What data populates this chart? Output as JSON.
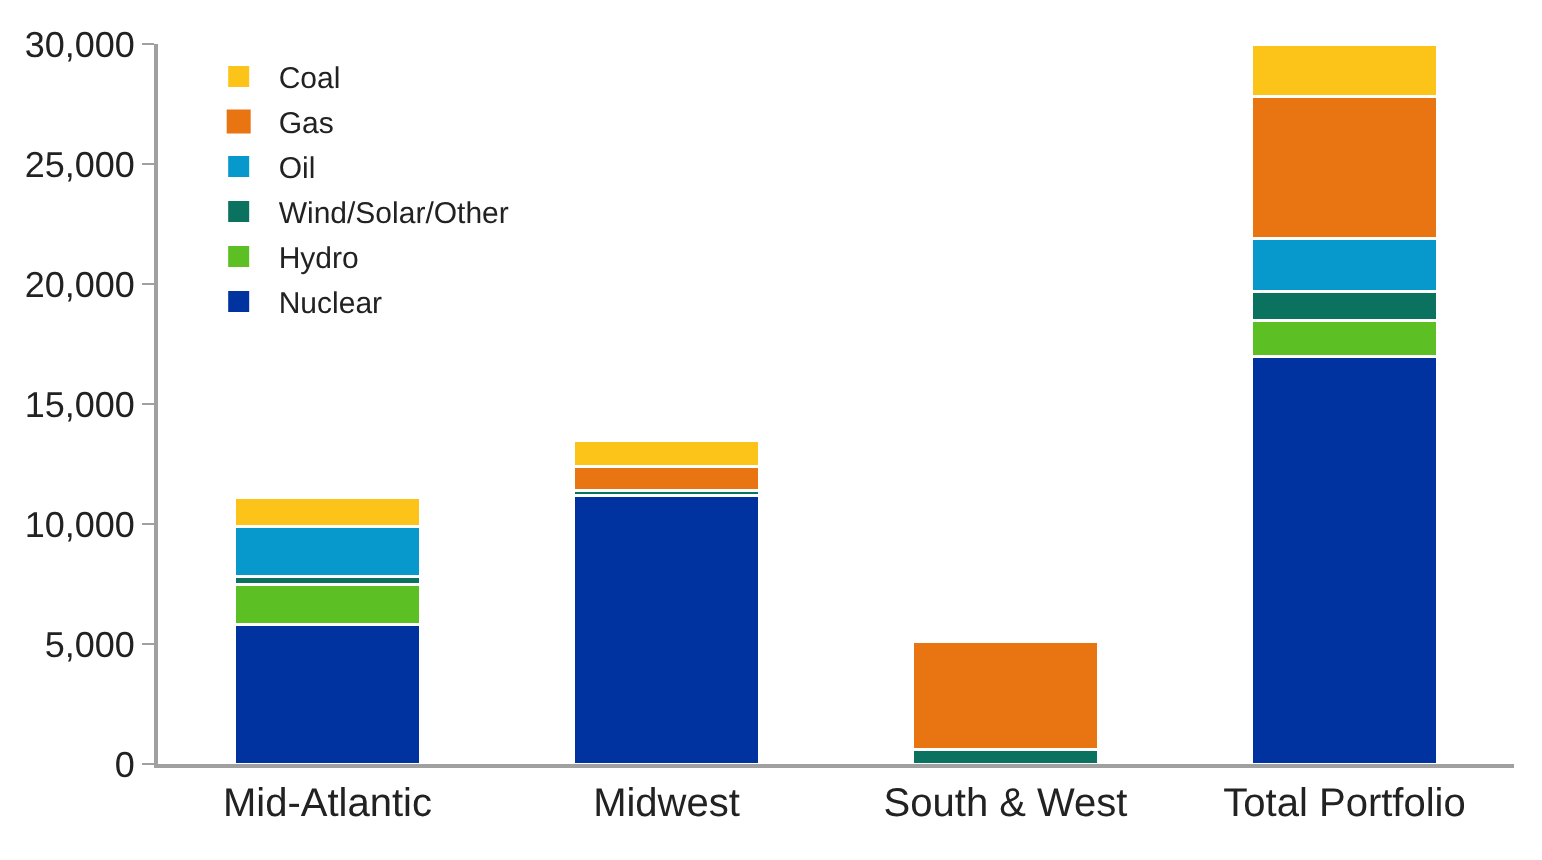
{
  "chart_data": {
    "type": "bar",
    "stacked": true,
    "categories": [
      "Mid-Atlantic",
      "Midwest",
      "South & West",
      "Total Portfolio"
    ],
    "series": [
      {
        "name": "Nuclear",
        "color": "#0033a0",
        "values": [
          5800,
          11200,
          0,
          17000
        ]
      },
      {
        "name": "Hydro",
        "color": "#5cbf24",
        "values": [
          1700,
          0,
          0,
          1500
        ]
      },
      {
        "name": "Wind/Solar/Other",
        "color": "#0b7260",
        "values": [
          300,
          200,
          600,
          1200
        ]
      },
      {
        "name": "Oil",
        "color": "#0899cc",
        "values": [
          2100,
          0,
          0,
          2200
        ]
      },
      {
        "name": "Gas",
        "color": "#e87412",
        "values": [
          0,
          1000,
          4500,
          5900
        ]
      },
      {
        "name": "Coal",
        "color": "#fcc419",
        "values": [
          1200,
          1100,
          0,
          2200
        ]
      }
    ],
    "ylim": [
      0,
      30000
    ],
    "yticks": [
      {
        "value": 0,
        "label": "0"
      },
      {
        "value": 5000,
        "label": "5,000"
      },
      {
        "value": 10000,
        "label": "10,000"
      },
      {
        "value": 15000,
        "label": "15,000"
      },
      {
        "value": 20000,
        "label": "20,000"
      },
      {
        "value": 25000,
        "label": "25,000"
      },
      {
        "value": 30000,
        "label": "30,000"
      }
    ],
    "legend": "top left"
  }
}
